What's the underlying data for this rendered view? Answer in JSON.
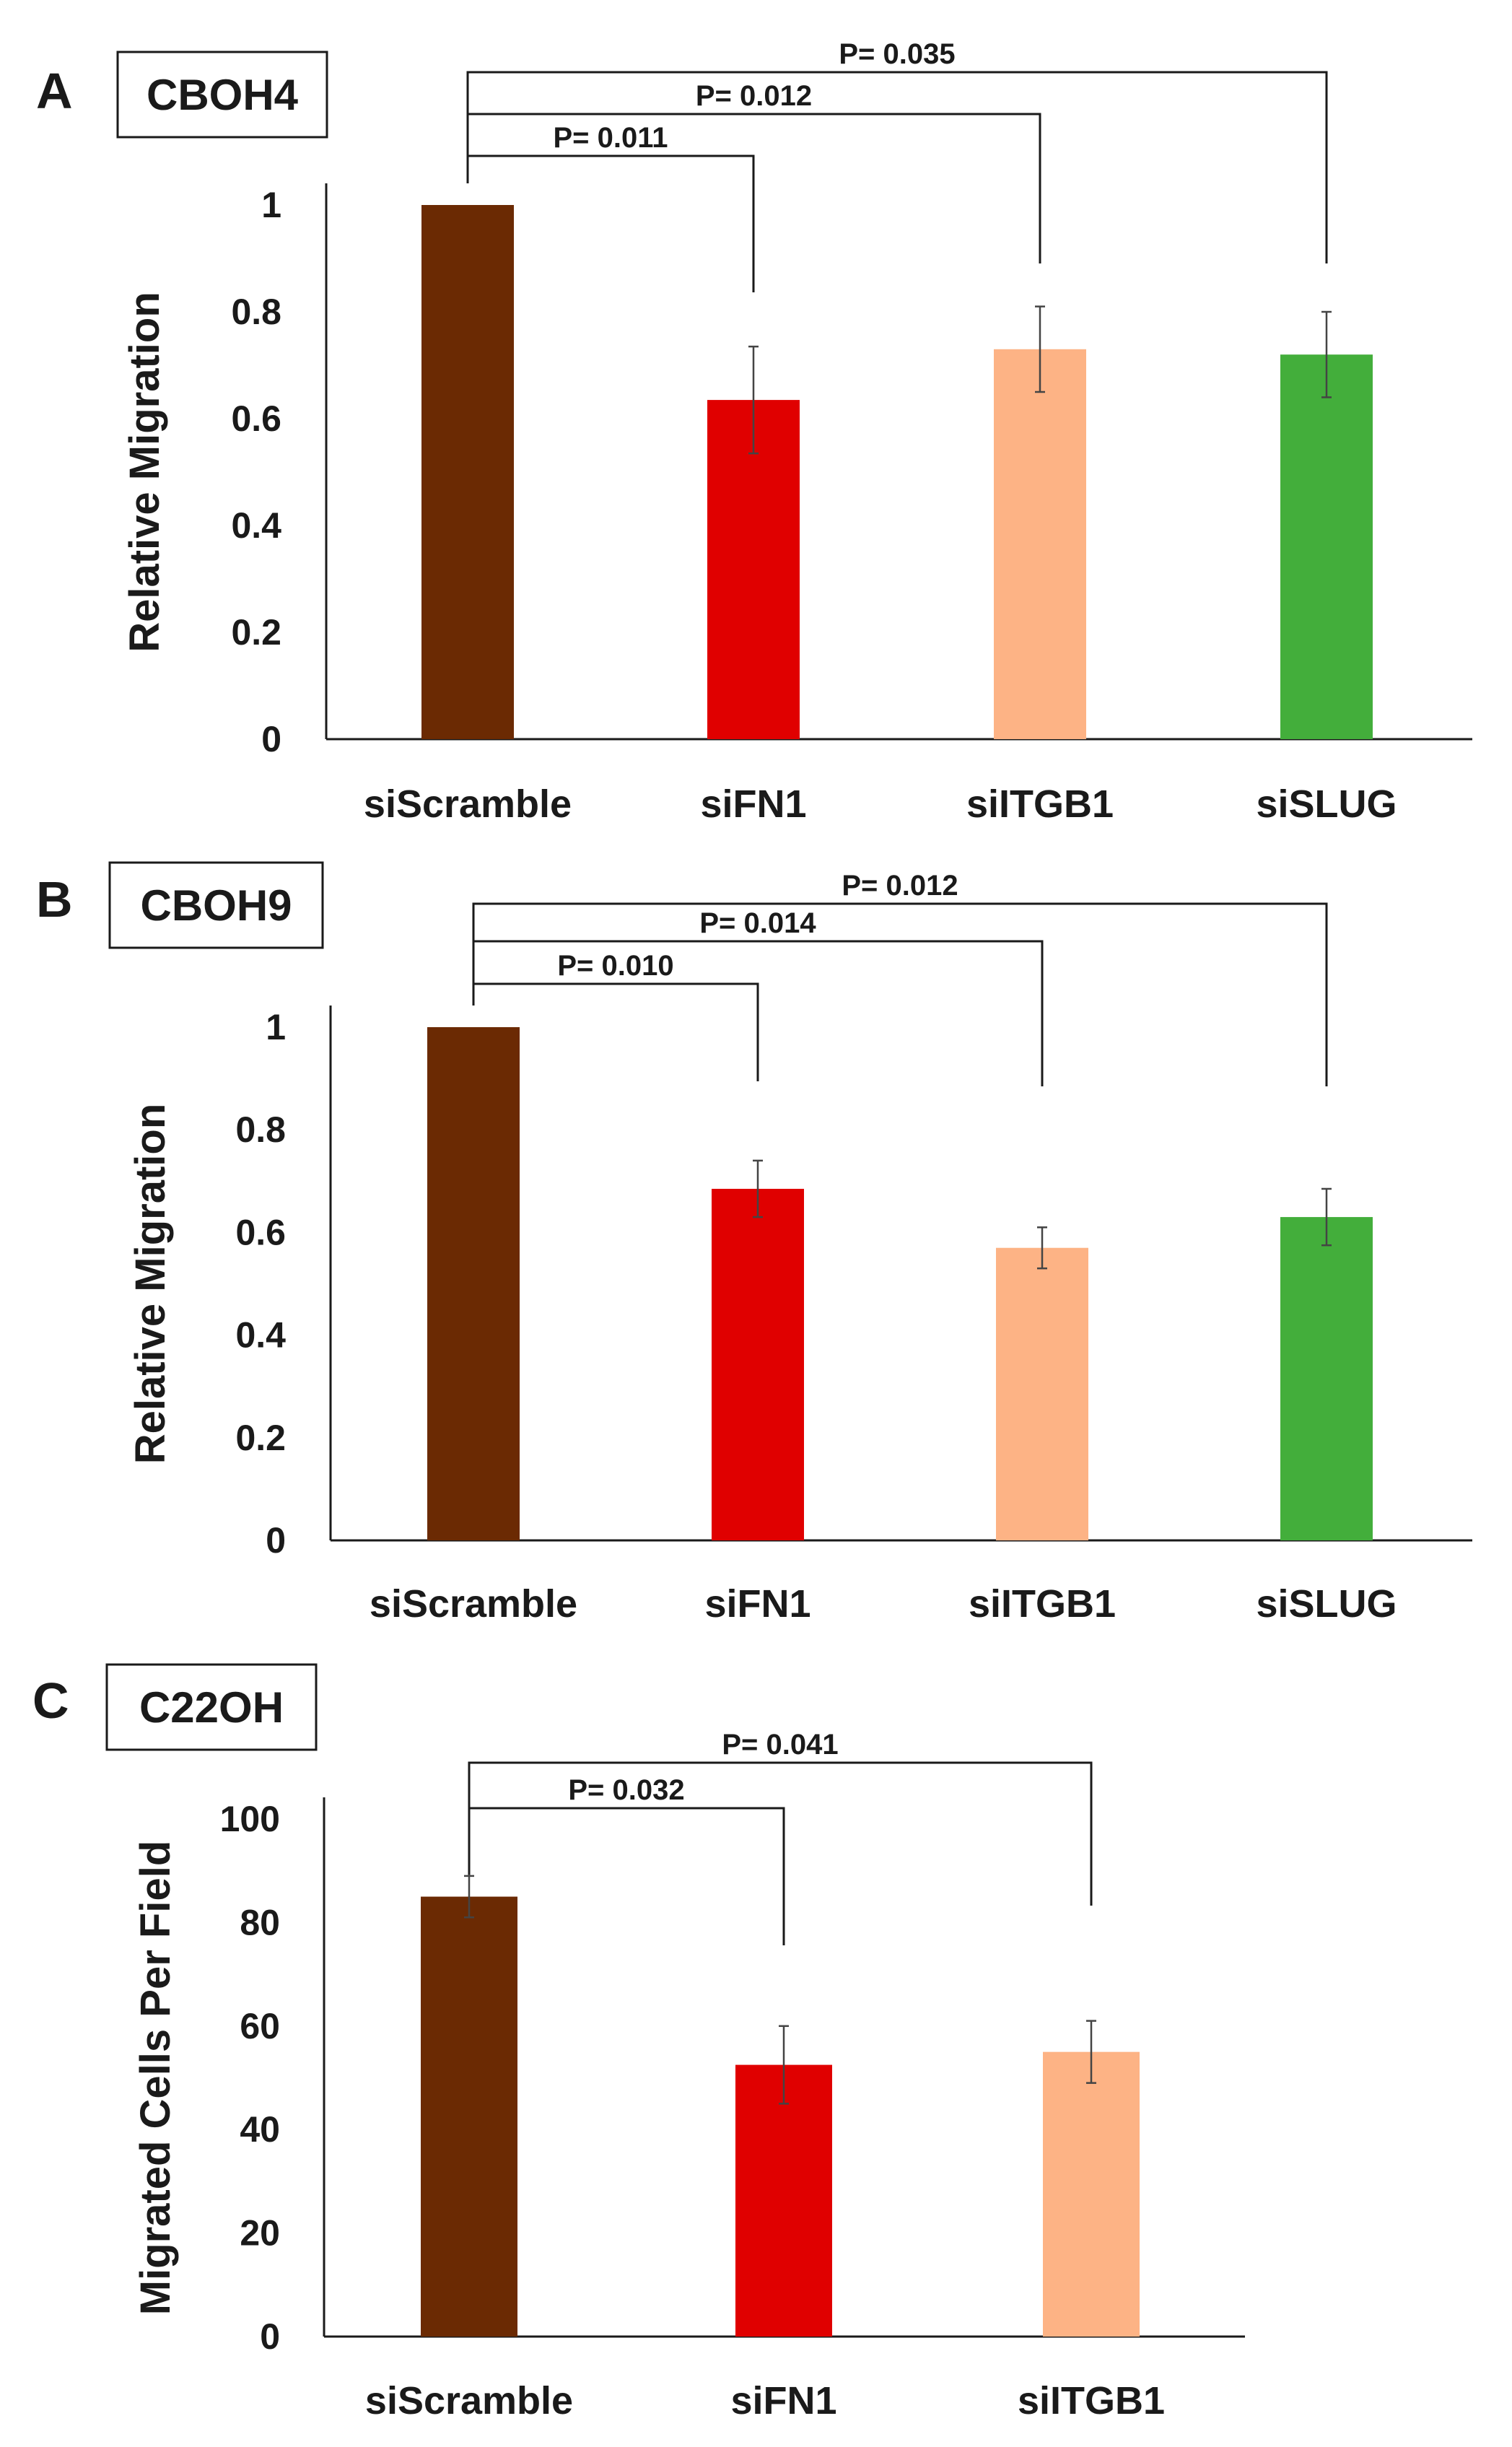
{
  "chart_data": [
    {
      "type": "bar",
      "panel": "A",
      "cell_line": "CBOH4",
      "categories": [
        "siScramble",
        "siFN1",
        "siITGB1",
        "siSLUG"
      ],
      "values": [
        1.0,
        0.635,
        0.73,
        0.72
      ],
      "errors": [
        0.0,
        0.1,
        0.08,
        0.08
      ],
      "colors": [
        "#6b2a03",
        "#e00000",
        "#fdb385",
        "#43ae3b"
      ],
      "ylabel": "Relative Migration",
      "ylim": [
        0,
        1
      ],
      "yticks": [
        0,
        0.2,
        0.4,
        0.6,
        0.8,
        1
      ],
      "ytick_labels": [
        "0",
        "0.2",
        "0.4",
        "0.6",
        "0.8",
        "1"
      ],
      "comparisons": [
        {
          "from": 0,
          "to": 1,
          "label": "P= 0.011"
        },
        {
          "from": 0,
          "to": 2,
          "label": "P= 0.012"
        },
        {
          "from": 0,
          "to": 3,
          "label": "P= 0.035"
        }
      ]
    },
    {
      "type": "bar",
      "panel": "B",
      "cell_line": "CBOH9",
      "categories": [
        "siScramble",
        "siFN1",
        "siITGB1",
        "siSLUG"
      ],
      "values": [
        1.0,
        0.685,
        0.57,
        0.63
      ],
      "errors": [
        0.0,
        0.055,
        0.04,
        0.055
      ],
      "colors": [
        "#6b2a03",
        "#e00000",
        "#fdb385",
        "#43ae3b"
      ],
      "ylabel": "Relative Migration",
      "ylim": [
        0,
        1
      ],
      "yticks": [
        0,
        0.2,
        0.4,
        0.6,
        0.8,
        1
      ],
      "ytick_labels": [
        "0",
        "0.2",
        "0.4",
        "0.6",
        "0.8",
        "1"
      ],
      "comparisons": [
        {
          "from": 0,
          "to": 1,
          "label": "P= 0.010"
        },
        {
          "from": 0,
          "to": 2,
          "label": "P= 0.014"
        },
        {
          "from": 0,
          "to": 3,
          "label": "P= 0.012"
        }
      ]
    },
    {
      "type": "bar",
      "panel": "C",
      "cell_line": "C22OH",
      "categories": [
        "siScramble",
        "siFN1",
        "siITGB1"
      ],
      "values": [
        85,
        52.5,
        55
      ],
      "errors": [
        4,
        7.5,
        6
      ],
      "colors": [
        "#6b2a03",
        "#e00000",
        "#fdb385"
      ],
      "ylabel": "Migrated Cells Per Field",
      "ylim": [
        0,
        100
      ],
      "yticks": [
        0,
        20,
        40,
        60,
        80,
        100
      ],
      "ytick_labels": [
        "0",
        "20",
        "40",
        "60",
        "80",
        "100"
      ],
      "comparisons": [
        {
          "from": 0,
          "to": 1,
          "label": "P= 0.032"
        },
        {
          "from": 0,
          "to": 2,
          "label": "P= 0.041"
        }
      ]
    }
  ]
}
